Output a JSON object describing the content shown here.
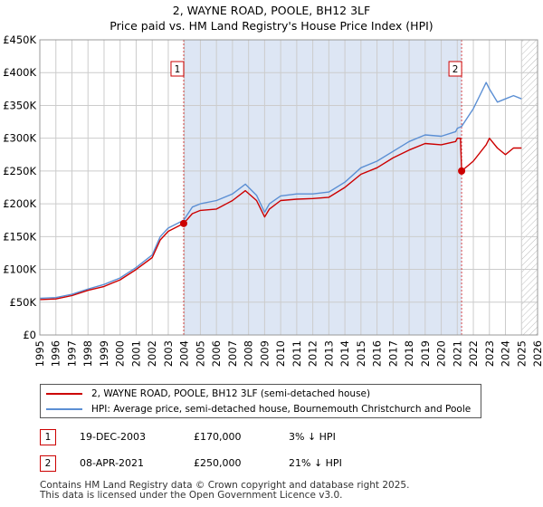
{
  "chart_data": {
    "type": "line",
    "title": "2, WAYNE ROAD, POOLE, BH12 3LF",
    "subtitle": "Price paid vs. HM Land Registry's House Price Index (HPI)",
    "xlabel": "",
    "ylabel": "",
    "xlim": [
      1995,
      2026
    ],
    "ylim": [
      0,
      450000
    ],
    "x_ticks": [
      1995,
      1996,
      1997,
      1998,
      1999,
      2000,
      2001,
      2002,
      2003,
      2004,
      2005,
      2006,
      2007,
      2008,
      2009,
      2010,
      2011,
      2012,
      2013,
      2014,
      2015,
      2016,
      2017,
      2018,
      2019,
      2020,
      2021,
      2022,
      2023,
      2024,
      2025,
      2026
    ],
    "y_ticks": [
      {
        "value": 0,
        "label": "£0"
      },
      {
        "value": 50000,
        "label": "£50K"
      },
      {
        "value": 100000,
        "label": "£100K"
      },
      {
        "value": 150000,
        "label": "£150K"
      },
      {
        "value": 200000,
        "label": "£200K"
      },
      {
        "value": 250000,
        "label": "£250K"
      },
      {
        "value": 300000,
        "label": "£300K"
      },
      {
        "value": 350000,
        "label": "£350K"
      },
      {
        "value": 400000,
        "label": "£400K"
      },
      {
        "value": 450000,
        "label": "£450K"
      }
    ],
    "grid": true,
    "shaded_region": {
      "from": 2003.96,
      "to": 2021.27
    },
    "future_hatch_from": 2025.0,
    "series": [
      {
        "name": "2, WAYNE ROAD, POOLE, BH12 3LF (semi-detached house)",
        "color": "#cc0000",
        "x": [
          1995.0,
          1996.0,
          1997.0,
          1998.0,
          1999.0,
          2000.0,
          2001.0,
          2002.0,
          2002.5,
          2003.0,
          2003.96,
          2004.5,
          2005.0,
          2006.0,
          2007.0,
          2007.8,
          2008.5,
          2009.0,
          2009.3,
          2010.0,
          2011.0,
          2012.0,
          2013.0,
          2014.0,
          2015.0,
          2016.0,
          2017.0,
          2018.0,
          2019.0,
          2020.0,
          2020.9,
          2021.0,
          2021.2,
          2021.27,
          2022.0,
          2022.8,
          2023.0,
          2023.5,
          2024.0,
          2024.5,
          2025.0
        ],
        "y": [
          54000,
          55000,
          60000,
          68000,
          74000,
          84000,
          100000,
          118000,
          145000,
          158000,
          170000,
          185000,
          190000,
          192000,
          205000,
          220000,
          205000,
          180000,
          192000,
          205000,
          207000,
          208000,
          210000,
          225000,
          245000,
          255000,
          270000,
          282000,
          292000,
          290000,
          295000,
          300000,
          300000,
          250000,
          265000,
          290000,
          300000,
          285000,
          275000,
          285000,
          285000
        ]
      },
      {
        "name": "HPI: Average price, semi-detached house, Bournemouth Christchurch and Poole",
        "color": "#5b8fd4",
        "x": [
          1995.0,
          1996.0,
          1997.0,
          1998.0,
          1999.0,
          2000.0,
          2001.0,
          2002.0,
          2002.5,
          2003.0,
          2003.96,
          2004.5,
          2005.0,
          2006.0,
          2007.0,
          2007.8,
          2008.5,
          2009.0,
          2009.3,
          2010.0,
          2011.0,
          2012.0,
          2013.0,
          2014.0,
          2015.0,
          2016.0,
          2017.0,
          2018.0,
          2019.0,
          2020.0,
          2020.9,
          2021.0,
          2021.27,
          2022.0,
          2022.5,
          2022.8,
          2023.0,
          2023.5,
          2024.0,
          2024.5,
          2025.0
        ],
        "y": [
          56000,
          57000,
          62000,
          70000,
          77000,
          87000,
          103000,
          122000,
          150000,
          163000,
          175000,
          195000,
          200000,
          205000,
          215000,
          230000,
          213000,
          187000,
          200000,
          212000,
          215000,
          215000,
          218000,
          233000,
          255000,
          265000,
          280000,
          295000,
          305000,
          303000,
          310000,
          315000,
          318000,
          345000,
          370000,
          385000,
          375000,
          355000,
          360000,
          365000,
          360000
        ]
      }
    ],
    "annotations": [
      {
        "label": "1",
        "x": 2003.96,
        "y": 170000
      },
      {
        "label": "2",
        "x": 2021.27,
        "y": 250000
      }
    ]
  },
  "legend": {
    "series1": "2, WAYNE ROAD, POOLE, BH12 3LF (semi-detached house)",
    "series2": "HPI: Average price, semi-detached house, Bournemouth Christchurch and Poole"
  },
  "sales": [
    {
      "num": "1",
      "date": "19-DEC-2003",
      "price": "£170,000",
      "hpi": "3% ↓ HPI"
    },
    {
      "num": "2",
      "date": "08-APR-2021",
      "price": "£250,000",
      "hpi": "21% ↓ HPI"
    }
  ],
  "footer": {
    "line1": "Contains HM Land Registry data © Crown copyright and database right 2025.",
    "line2": "This data is licensed under the Open Government Licence v3.0."
  },
  "colors": {
    "price": "#cc0000",
    "hpi": "#5b8fd4",
    "shade": "#dde6f4",
    "grid": "#cccccc"
  }
}
